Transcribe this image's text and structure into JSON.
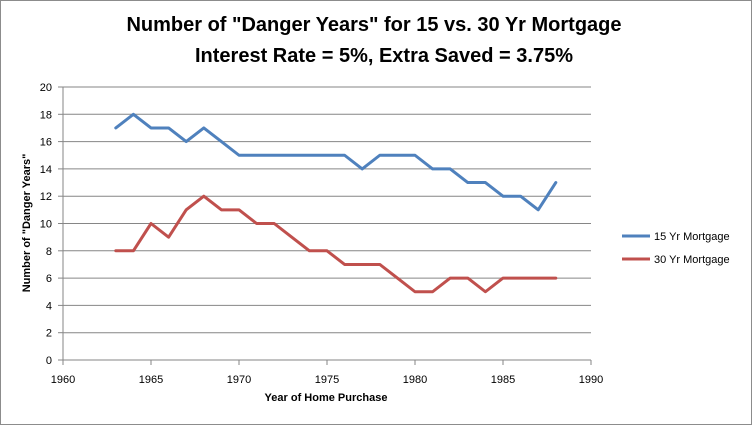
{
  "chart_data": {
    "type": "line",
    "title": "Number of \"Danger Years\" for 15 vs. 30 Yr Mortgage",
    "subtitle": "Interest Rate = 5%, Extra Saved = 3.75%",
    "xlabel": "Year of Home Purchase",
    "ylabel": "Number of \"Danger Years\"",
    "xlim": [
      1960,
      1990
    ],
    "ylim": [
      0,
      20
    ],
    "xticks": [
      1960,
      1965,
      1970,
      1975,
      1980,
      1985,
      1990
    ],
    "yticks": [
      0,
      2,
      4,
      6,
      8,
      10,
      12,
      14,
      16,
      18,
      20
    ],
    "grid": "horizontal",
    "legend_position": "right",
    "x": [
      1963,
      1964,
      1965,
      1966,
      1967,
      1968,
      1969,
      1970,
      1971,
      1972,
      1973,
      1974,
      1975,
      1976,
      1977,
      1978,
      1979,
      1980,
      1981,
      1982,
      1983,
      1984,
      1985,
      1986,
      1987,
      1988
    ],
    "series": [
      {
        "name": "15 Yr Mortgage",
        "color": "#4f81bd",
        "values": [
          17,
          18,
          17,
          17,
          16,
          17,
          16,
          15,
          15,
          15,
          15,
          15,
          15,
          15,
          14,
          15,
          15,
          15,
          14,
          14,
          13,
          13,
          12,
          12,
          11,
          13
        ]
      },
      {
        "name": "30 Yr Mortgage",
        "color": "#c0504d",
        "values": [
          8,
          8,
          10,
          9,
          11,
          12,
          11,
          11,
          10,
          10,
          9,
          8,
          8,
          7,
          7,
          7,
          6,
          5,
          5,
          6,
          6,
          5,
          6,
          6,
          6,
          6
        ]
      }
    ]
  }
}
